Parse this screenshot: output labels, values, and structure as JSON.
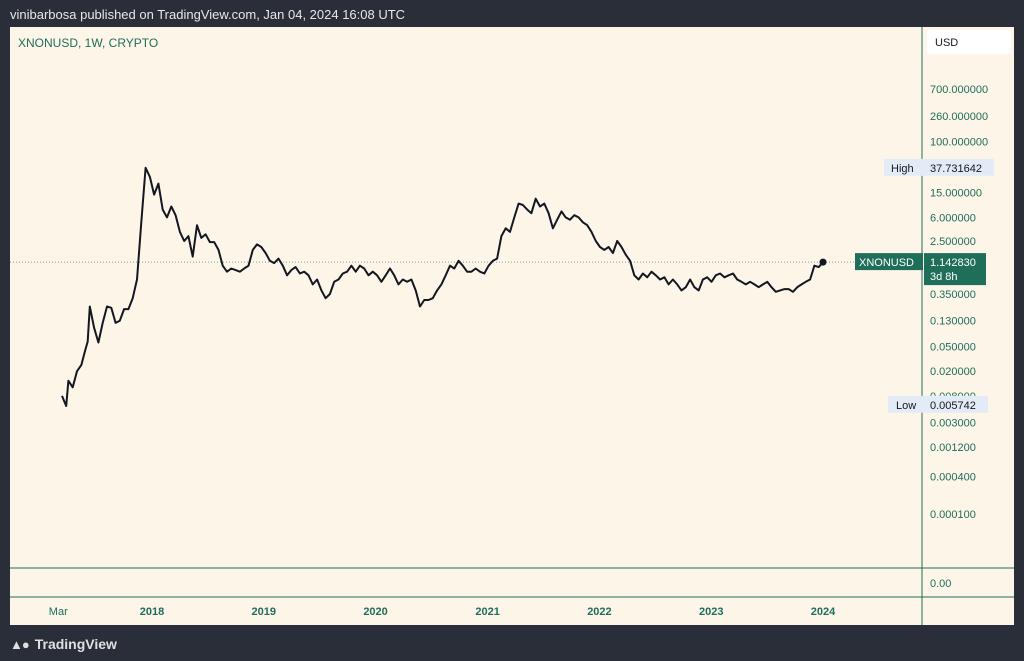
{
  "header": {
    "published": "vinibarbosa published on TradingView.com, Jan 04, 2024 16:08 UTC"
  },
  "footer": {
    "brand": "TradingView",
    "logo_icon": "tradingview-logo-icon"
  },
  "chart_data": {
    "type": "line",
    "title": "XNONUSD, 1W, CRYPTO",
    "currency": "USD",
    "y_scale": "log",
    "y_ticks_top": [
      "700.000000",
      "260.000000",
      "100.000000",
      "15.000000",
      "6.000000",
      "2.500000",
      "0.350000",
      "0.130000",
      "0.050000",
      "0.020000",
      "0.008000",
      "0.003000",
      "0.001200",
      "0.000400",
      "0.000100"
    ],
    "y_tick_bottom": "0.00",
    "x_ticks": [
      "Mar",
      "2018",
      "2019",
      "2020",
      "2021",
      "2022",
      "2023",
      "2024"
    ],
    "high": {
      "label": "High",
      "value": "37.731642"
    },
    "low": {
      "label": "Low",
      "value": "0.005742"
    },
    "last": {
      "symbol": "XNONUSD",
      "value": "1.142830",
      "countdown": "3d 8h"
    },
    "colors": {
      "line": "#131722",
      "accent": "#1e6e5a",
      "label_bg": "#e3ecf6",
      "background": "#fdf5e8",
      "axis_text": "#1e6e5a"
    },
    "series": [
      {
        "values": [
          [
            "2017-03-13",
            0.008
          ],
          [
            "2017-03-27",
            0.0055
          ],
          [
            "2017-04-03",
            0.014
          ],
          [
            "2017-04-17",
            0.011
          ],
          [
            "2017-05-01",
            0.02
          ],
          [
            "2017-05-15",
            0.025
          ],
          [
            "2017-05-29",
            0.045
          ],
          [
            "2017-06-05",
            0.06
          ],
          [
            "2017-06-12",
            0.22
          ],
          [
            "2017-06-26",
            0.1
          ],
          [
            "2017-07-10",
            0.058
          ],
          [
            "2017-07-24",
            0.12
          ],
          [
            "2017-08-07",
            0.22
          ],
          [
            "2017-08-21",
            0.21
          ],
          [
            "2017-09-04",
            0.12
          ],
          [
            "2017-09-18",
            0.13
          ],
          [
            "2017-10-02",
            0.2
          ],
          [
            "2017-10-16",
            0.2
          ],
          [
            "2017-10-30",
            0.3
          ],
          [
            "2017-11-13",
            0.6
          ],
          [
            "2017-11-27",
            5.0
          ],
          [
            "2017-12-11",
            37.73
          ],
          [
            "2017-12-25",
            27.0
          ],
          [
            "2018-01-08",
            14.0
          ],
          [
            "2018-01-22",
            21.0
          ],
          [
            "2018-02-05",
            8.0
          ],
          [
            "2018-02-19",
            6.0
          ],
          [
            "2018-03-05",
            9.0
          ],
          [
            "2018-03-19",
            6.5
          ],
          [
            "2018-04-02",
            3.5
          ],
          [
            "2018-04-16",
            2.5
          ],
          [
            "2018-04-30",
            3.0
          ],
          [
            "2018-05-14",
            1.4
          ],
          [
            "2018-05-28",
            4.5
          ],
          [
            "2018-06-11",
            2.8
          ],
          [
            "2018-06-25",
            3.2
          ],
          [
            "2018-07-09",
            2.4
          ],
          [
            "2018-07-23",
            2.4
          ],
          [
            "2018-08-06",
            1.8
          ],
          [
            "2018-08-20",
            1.0
          ],
          [
            "2018-09-03",
            0.8
          ],
          [
            "2018-09-17",
            0.9
          ],
          [
            "2018-10-01",
            0.85
          ],
          [
            "2018-10-15",
            0.8
          ],
          [
            "2018-10-29",
            0.9
          ],
          [
            "2018-11-12",
            1.0
          ],
          [
            "2018-11-26",
            1.8
          ],
          [
            "2018-12-10",
            2.2
          ],
          [
            "2018-12-24",
            2.0
          ],
          [
            "2019-01-07",
            1.6
          ],
          [
            "2019-01-21",
            1.2
          ],
          [
            "2019-02-04",
            1.1
          ],
          [
            "2019-02-18",
            1.3
          ],
          [
            "2019-03-04",
            1.0
          ],
          [
            "2019-03-18",
            0.7
          ],
          [
            "2019-04-01",
            0.85
          ],
          [
            "2019-04-15",
            0.95
          ],
          [
            "2019-04-29",
            0.75
          ],
          [
            "2019-05-13",
            0.8
          ],
          [
            "2019-05-27",
            0.7
          ],
          [
            "2019-06-10",
            0.5
          ],
          [
            "2019-06-24",
            0.6
          ],
          [
            "2019-07-08",
            0.4
          ],
          [
            "2019-07-22",
            0.3
          ],
          [
            "2019-08-05",
            0.35
          ],
          [
            "2019-08-19",
            0.55
          ],
          [
            "2019-09-02",
            0.6
          ],
          [
            "2019-09-16",
            0.75
          ],
          [
            "2019-09-30",
            0.8
          ],
          [
            "2019-10-14",
            1.0
          ],
          [
            "2019-10-28",
            0.8
          ],
          [
            "2019-11-11",
            1.0
          ],
          [
            "2019-11-25",
            0.9
          ],
          [
            "2019-12-09",
            0.7
          ],
          [
            "2019-12-23",
            0.8
          ],
          [
            "2020-01-06",
            0.7
          ],
          [
            "2020-01-20",
            0.55
          ],
          [
            "2020-02-03",
            0.7
          ],
          [
            "2020-02-17",
            0.9
          ],
          [
            "2020-03-02",
            0.7
          ],
          [
            "2020-03-16",
            0.5
          ],
          [
            "2020-03-30",
            0.6
          ],
          [
            "2020-04-13",
            0.55
          ],
          [
            "2020-04-27",
            0.6
          ],
          [
            "2020-05-11",
            0.4
          ],
          [
            "2020-05-25",
            0.22
          ],
          [
            "2020-06-08",
            0.28
          ],
          [
            "2020-06-22",
            0.28
          ],
          [
            "2020-07-06",
            0.3
          ],
          [
            "2020-07-20",
            0.4
          ],
          [
            "2020-08-03",
            0.5
          ],
          [
            "2020-08-17",
            0.7
          ],
          [
            "2020-08-31",
            1.0
          ],
          [
            "2020-09-14",
            0.9
          ],
          [
            "2020-09-28",
            1.2
          ],
          [
            "2020-10-12",
            1.0
          ],
          [
            "2020-10-26",
            0.8
          ],
          [
            "2020-11-09",
            0.8
          ],
          [
            "2020-11-23",
            0.9
          ],
          [
            "2020-12-07",
            0.8
          ],
          [
            "2020-12-21",
            0.75
          ],
          [
            "2021-01-04",
            1.0
          ],
          [
            "2021-01-18",
            1.2
          ],
          [
            "2021-02-01",
            1.3
          ],
          [
            "2021-02-15",
            3.0
          ],
          [
            "2021-03-01",
            4.0
          ],
          [
            "2021-03-15",
            3.5
          ],
          [
            "2021-03-29",
            6.0
          ],
          [
            "2021-04-12",
            10.0
          ],
          [
            "2021-04-26",
            9.5
          ],
          [
            "2021-05-10",
            8.0
          ],
          [
            "2021-05-24",
            7.0
          ],
          [
            "2021-06-07",
            12.0
          ],
          [
            "2021-06-21",
            9.0
          ],
          [
            "2021-07-05",
            10.0
          ],
          [
            "2021-07-19",
            7.0
          ],
          [
            "2021-08-02",
            4.0
          ],
          [
            "2021-08-16",
            5.5
          ],
          [
            "2021-08-30",
            7.5
          ],
          [
            "2021-09-13",
            6.0
          ],
          [
            "2021-09-27",
            5.5
          ],
          [
            "2021-10-11",
            6.5
          ],
          [
            "2021-10-25",
            6.0
          ],
          [
            "2021-11-08",
            5.0
          ],
          [
            "2021-11-22",
            4.5
          ],
          [
            "2021-12-06",
            3.5
          ],
          [
            "2021-12-20",
            2.5
          ],
          [
            "2022-01-03",
            2.0
          ],
          [
            "2022-01-17",
            1.8
          ],
          [
            "2022-01-31",
            2.0
          ],
          [
            "2022-02-14",
            1.6
          ],
          [
            "2022-02-28",
            2.5
          ],
          [
            "2022-03-14",
            2.0
          ],
          [
            "2022-03-28",
            1.5
          ],
          [
            "2022-04-11",
            1.2
          ],
          [
            "2022-04-25",
            0.7
          ],
          [
            "2022-05-09",
            0.6
          ],
          [
            "2022-05-23",
            0.75
          ],
          [
            "2022-06-06",
            0.65
          ],
          [
            "2022-06-20",
            0.8
          ],
          [
            "2022-07-04",
            0.7
          ],
          [
            "2022-07-18",
            0.6
          ],
          [
            "2022-08-01",
            0.65
          ],
          [
            "2022-08-15",
            0.5
          ],
          [
            "2022-08-29",
            0.6
          ],
          [
            "2022-09-12",
            0.5
          ],
          [
            "2022-09-26",
            0.4
          ],
          [
            "2022-10-10",
            0.45
          ],
          [
            "2022-10-24",
            0.6
          ],
          [
            "2022-11-07",
            0.45
          ],
          [
            "2022-11-21",
            0.4
          ],
          [
            "2022-12-05",
            0.6
          ],
          [
            "2022-12-19",
            0.65
          ],
          [
            "2023-01-02",
            0.55
          ],
          [
            "2023-01-16",
            0.7
          ],
          [
            "2023-01-30",
            0.75
          ],
          [
            "2023-02-13",
            0.65
          ],
          [
            "2023-02-27",
            0.7
          ],
          [
            "2023-03-13",
            0.75
          ],
          [
            "2023-03-27",
            0.6
          ],
          [
            "2023-04-10",
            0.55
          ],
          [
            "2023-04-24",
            0.5
          ],
          [
            "2023-05-08",
            0.55
          ],
          [
            "2023-05-22",
            0.5
          ],
          [
            "2023-06-05",
            0.45
          ],
          [
            "2023-06-19",
            0.5
          ],
          [
            "2023-07-03",
            0.55
          ],
          [
            "2023-07-17",
            0.45
          ],
          [
            "2023-07-31",
            0.38
          ],
          [
            "2023-08-14",
            0.4
          ],
          [
            "2023-08-28",
            0.42
          ],
          [
            "2023-09-11",
            0.42
          ],
          [
            "2023-09-25",
            0.38
          ],
          [
            "2023-10-09",
            0.45
          ],
          [
            "2023-10-23",
            0.5
          ],
          [
            "2023-11-06",
            0.55
          ],
          [
            "2023-11-20",
            0.6
          ],
          [
            "2023-12-04",
            1.0
          ],
          [
            "2023-12-18",
            0.95
          ],
          [
            "2024-01-01",
            1.14283
          ]
        ]
      }
    ]
  }
}
